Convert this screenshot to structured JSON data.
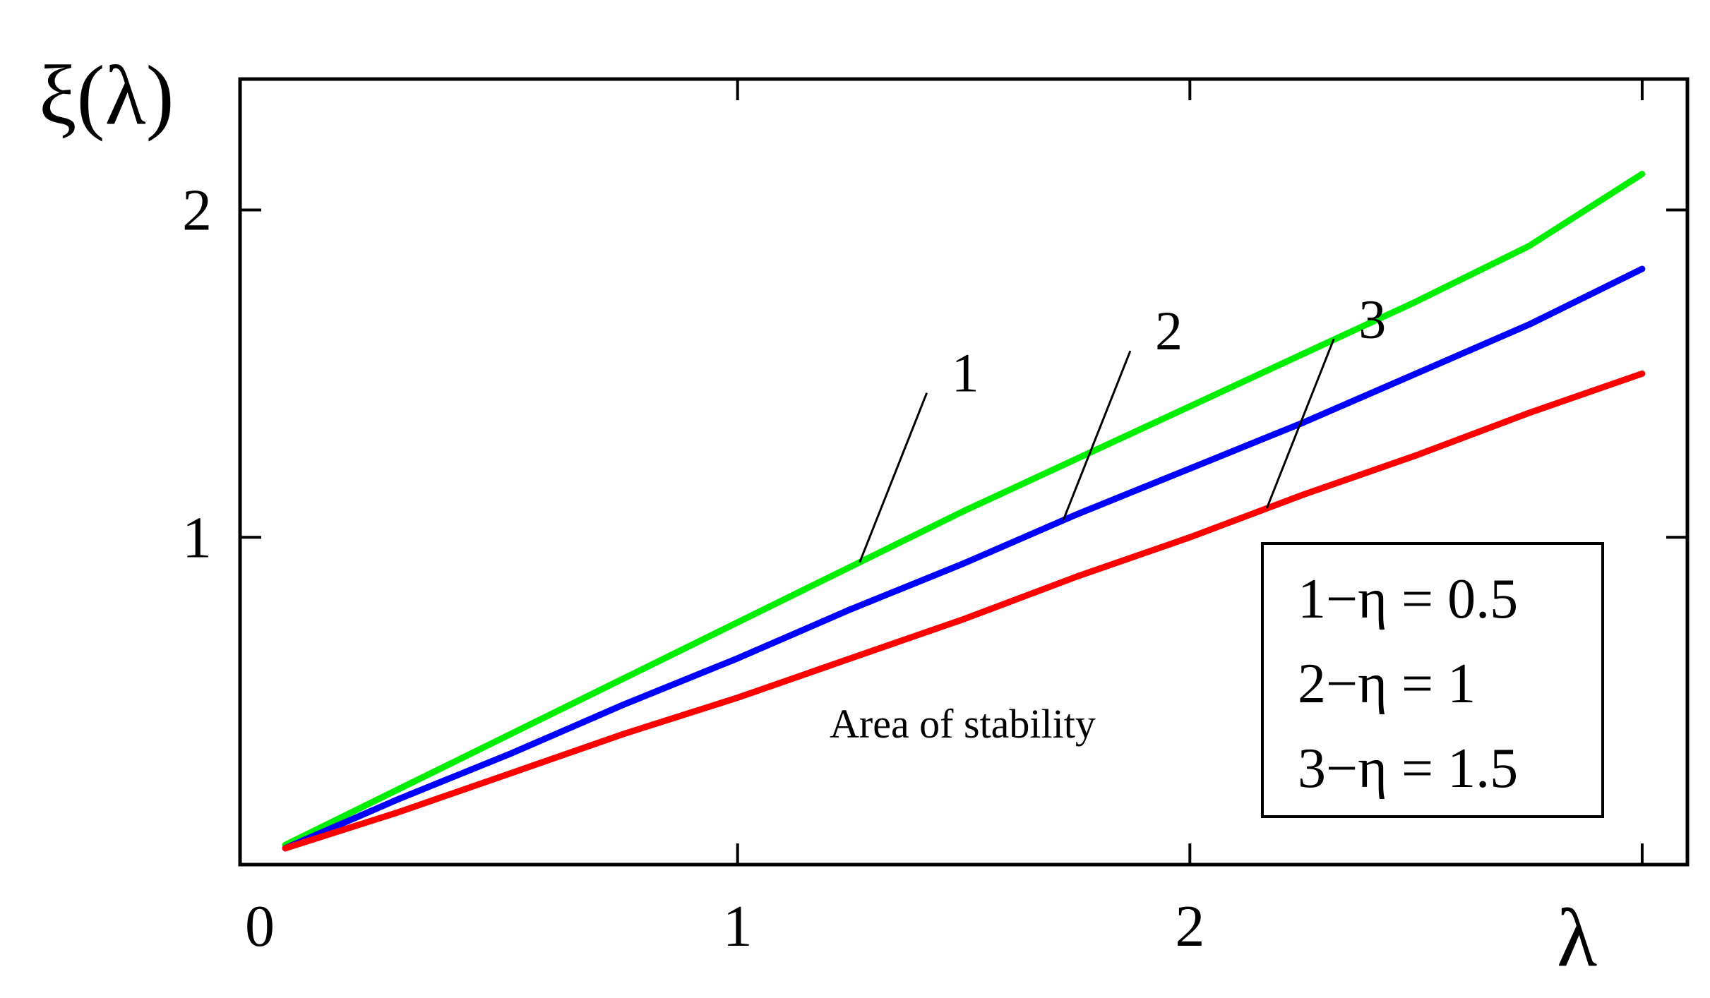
{
  "chart_data": {
    "type": "line",
    "ylabel": "ξ(λ)",
    "xlabel": "λ",
    "xlim": [
      -0.1,
      3.1
    ],
    "ylim": [
      0,
      2.4
    ],
    "x_ticks": [
      1,
      2,
      3
    ],
    "y_ticks": [
      1,
      2
    ],
    "x_tick_labels": [
      "0",
      "1",
      "2"
    ],
    "y_tick_labels": [
      "1",
      "2"
    ],
    "grid": false,
    "annotation": "Area of stability",
    "legend": {
      "placement": "bottom-right",
      "entries": [
        "1−η = 0.5",
        "2−η = 1",
        "3−η = 1.5"
      ]
    },
    "series": [
      {
        "label": "1",
        "color": "#00ee00",
        "x": [
          0.0,
          0.25,
          0.5,
          0.75,
          1.0,
          1.25,
          1.5,
          1.75,
          2.0,
          2.25,
          2.5,
          2.75,
          3.0
        ],
        "y": [
          0.06,
          0.23,
          0.4,
          0.57,
          0.74,
          0.91,
          1.08,
          1.24,
          1.4,
          1.56,
          1.72,
          1.89,
          2.11
        ]
      },
      {
        "label": "2",
        "color": "#0000ff",
        "x": [
          0.0,
          0.25,
          0.5,
          0.75,
          1.0,
          1.25,
          1.5,
          1.75,
          2.0,
          2.25,
          2.5,
          2.75,
          3.0
        ],
        "y": [
          0.05,
          0.2,
          0.34,
          0.49,
          0.63,
          0.78,
          0.92,
          1.07,
          1.21,
          1.35,
          1.5,
          1.65,
          1.82
        ]
      },
      {
        "label": "3",
        "color": "#ff0000",
        "x": [
          0.0,
          0.25,
          0.5,
          0.75,
          1.0,
          1.25,
          1.5,
          1.75,
          2.0,
          2.25,
          2.5,
          2.75,
          3.0
        ],
        "y": [
          0.05,
          0.16,
          0.28,
          0.4,
          0.51,
          0.63,
          0.75,
          0.88,
          1.0,
          1.13,
          1.25,
          1.38,
          1.5
        ]
      }
    ],
    "curve_labels": [
      {
        "text": "1",
        "series": 0,
        "x": 1.27
      },
      {
        "text": "2",
        "series": 1,
        "x": 1.72
      },
      {
        "text": "3",
        "series": 2,
        "x": 2.17
      }
    ]
  }
}
